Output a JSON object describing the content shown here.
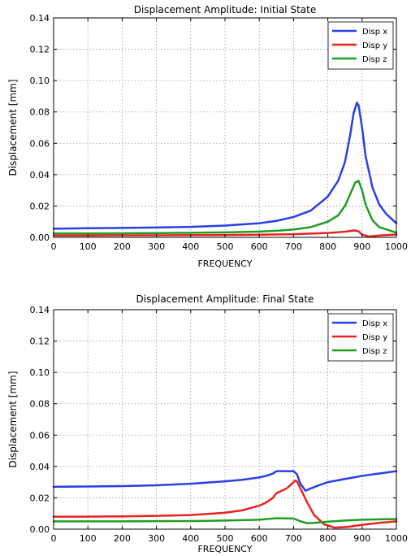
{
  "chart_data": [
    {
      "type": "line",
      "title": "Displacement Amplitude:  Initial State",
      "xlabel": "FREQUENCY",
      "ylabel": "Displacement [mm]",
      "xlim": [
        0,
        1000
      ],
      "ylim": [
        0,
        0.14
      ],
      "xticks": [
        0,
        100,
        200,
        300,
        400,
        500,
        600,
        700,
        800,
        900,
        1000
      ],
      "xtick_labels": [
        "0",
        "100",
        "200",
        "300",
        "400",
        "500",
        "600",
        "700",
        "800",
        "900",
        "1000"
      ],
      "yticks": [
        0,
        0.02,
        0.04,
        0.06,
        0.08,
        0.1,
        0.12,
        0.14
      ],
      "ytick_labels": [
        "0.00",
        "0.02",
        "0.04",
        "0.06",
        "0.08",
        "0.10",
        "0.12",
        "0.14"
      ],
      "grid": true,
      "legend_position": "top-right",
      "series": [
        {
          "name": "Disp x",
          "color": "#2b3fe8",
          "x": [
            0,
            100,
            200,
            300,
            400,
            500,
            600,
            650,
            700,
            750,
            800,
            830,
            850,
            865,
            875,
            885,
            890,
            900,
            910,
            930,
            950,
            970,
            1000
          ],
          "y": [
            0.0055,
            0.0058,
            0.006,
            0.0063,
            0.0067,
            0.0075,
            0.009,
            0.0105,
            0.013,
            0.017,
            0.026,
            0.036,
            0.048,
            0.065,
            0.079,
            0.086,
            0.084,
            0.07,
            0.052,
            0.032,
            0.021,
            0.015,
            0.009
          ]
        },
        {
          "name": "Disp y",
          "color": "#e8231f",
          "x": [
            0,
            100,
            200,
            300,
            400,
            500,
            600,
            700,
            750,
            800,
            850,
            870,
            880,
            890,
            900,
            920,
            950,
            1000
          ],
          "y": [
            0.0012,
            0.0012,
            0.0013,
            0.0013,
            0.0014,
            0.0015,
            0.0017,
            0.002,
            0.0024,
            0.0028,
            0.0036,
            0.0043,
            0.0044,
            0.0038,
            0.0018,
            0.0005,
            0.0012,
            0.0018
          ]
        },
        {
          "name": "Disp z",
          "color": "#1f9e22",
          "x": [
            0,
            100,
            200,
            300,
            400,
            500,
            600,
            650,
            700,
            750,
            800,
            830,
            850,
            870,
            880,
            890,
            900,
            910,
            930,
            950,
            1000
          ],
          "y": [
            0.0025,
            0.0025,
            0.0026,
            0.0027,
            0.0029,
            0.0032,
            0.0037,
            0.0042,
            0.005,
            0.0065,
            0.01,
            0.014,
            0.02,
            0.03,
            0.035,
            0.036,
            0.03,
            0.021,
            0.011,
            0.0065,
            0.003
          ]
        }
      ]
    },
    {
      "type": "line",
      "title": "Displacement Amplitude:  Final State",
      "xlabel": "FREQUENCY",
      "ylabel": "Displacement [mm]",
      "xlim": [
        0,
        1000
      ],
      "ylim": [
        0,
        0.14
      ],
      "xticks": [
        0,
        100,
        200,
        300,
        400,
        500,
        600,
        700,
        800,
        900,
        1000
      ],
      "xtick_labels": [
        "0",
        "100",
        "200",
        "300",
        "400",
        "500",
        "600",
        "700",
        "800",
        "900",
        "1000"
      ],
      "yticks": [
        0,
        0.02,
        0.04,
        0.06,
        0.08,
        0.1,
        0.12,
        0.14
      ],
      "ytick_labels": [
        "0.00",
        "0.02",
        "0.04",
        "0.06",
        "0.08",
        "0.10",
        "0.12",
        "0.14"
      ],
      "grid": true,
      "legend_position": "top-right",
      "series": [
        {
          "name": "Disp x",
          "color": "#2b3fe8",
          "x": [
            0,
            100,
            200,
            300,
            400,
            500,
            550,
            600,
            620,
            640,
            650,
            680,
            700,
            710,
            720,
            735,
            750,
            780,
            800,
            850,
            900,
            950,
            1000
          ],
          "y": [
            0.027,
            0.0272,
            0.0275,
            0.028,
            0.029,
            0.0305,
            0.0315,
            0.033,
            0.034,
            0.0355,
            0.037,
            0.037,
            0.037,
            0.035,
            0.029,
            0.0245,
            0.026,
            0.0285,
            0.03,
            0.032,
            0.034,
            0.0355,
            0.037
          ]
        },
        {
          "name": "Disp y",
          "color": "#e8231f",
          "x": [
            0,
            100,
            200,
            300,
            400,
            500,
            550,
            600,
            620,
            640,
            650,
            660,
            680,
            695,
            705,
            710,
            720,
            740,
            760,
            790,
            820,
            860,
            900,
            950,
            1000
          ],
          "y": [
            0.008,
            0.008,
            0.0082,
            0.0085,
            0.009,
            0.0105,
            0.012,
            0.015,
            0.017,
            0.02,
            0.023,
            0.024,
            0.026,
            0.029,
            0.031,
            0.0305,
            0.026,
            0.017,
            0.009,
            0.003,
            0.001,
            0.0015,
            0.0028,
            0.004,
            0.005
          ]
        },
        {
          "name": "Disp z",
          "color": "#1f9e22",
          "x": [
            0,
            100,
            200,
            300,
            400,
            500,
            600,
            650,
            700,
            720,
            740,
            760,
            800,
            850,
            900,
            950,
            1000
          ],
          "y": [
            0.005,
            0.005,
            0.005,
            0.0051,
            0.0052,
            0.0055,
            0.006,
            0.007,
            0.0068,
            0.005,
            0.0038,
            0.004,
            0.0048,
            0.0055,
            0.006,
            0.0063,
            0.0065
          ]
        }
      ]
    }
  ]
}
